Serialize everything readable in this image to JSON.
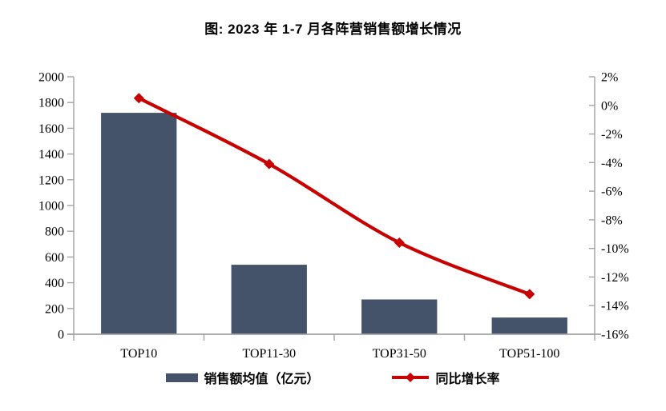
{
  "chart_data": {
    "type": "combo-bar-line",
    "title": "图: 2023 年 1-7 月各阵营销售额增长情况",
    "categories": [
      "TOP10",
      "TOP11-30",
      "TOP31-50",
      "TOP51-100"
    ],
    "series": [
      {
        "name": "销售额均值（亿元）",
        "type": "bar",
        "axis": "left",
        "color": "#44526A",
        "values": [
          1720,
          540,
          270,
          130
        ]
      },
      {
        "name": "同比增长率",
        "type": "line",
        "axis": "right",
        "color": "#C80000",
        "marker": "diamond",
        "values": [
          0.5,
          -4.1,
          -9.6,
          -13.2
        ]
      }
    ],
    "left_axis": {
      "min": 0,
      "max": 2000,
      "step": 200,
      "tick_labels": [
        "0",
        "200",
        "400",
        "600",
        "800",
        "1000",
        "1200",
        "1400",
        "1600",
        "1800",
        "2000"
      ]
    },
    "right_axis": {
      "min": -16,
      "max": 2,
      "step": 2,
      "format": "percent",
      "tick_labels": [
        "-16%",
        "-14%",
        "-12%",
        "-10%",
        "-8%",
        "-6%",
        "-4%",
        "-2%",
        "0%",
        "2%"
      ]
    },
    "grid": false,
    "legend_position": "bottom",
    "axis_color": "#A3A3A3",
    "text_color": "#000000",
    "background": "#ffffff"
  }
}
